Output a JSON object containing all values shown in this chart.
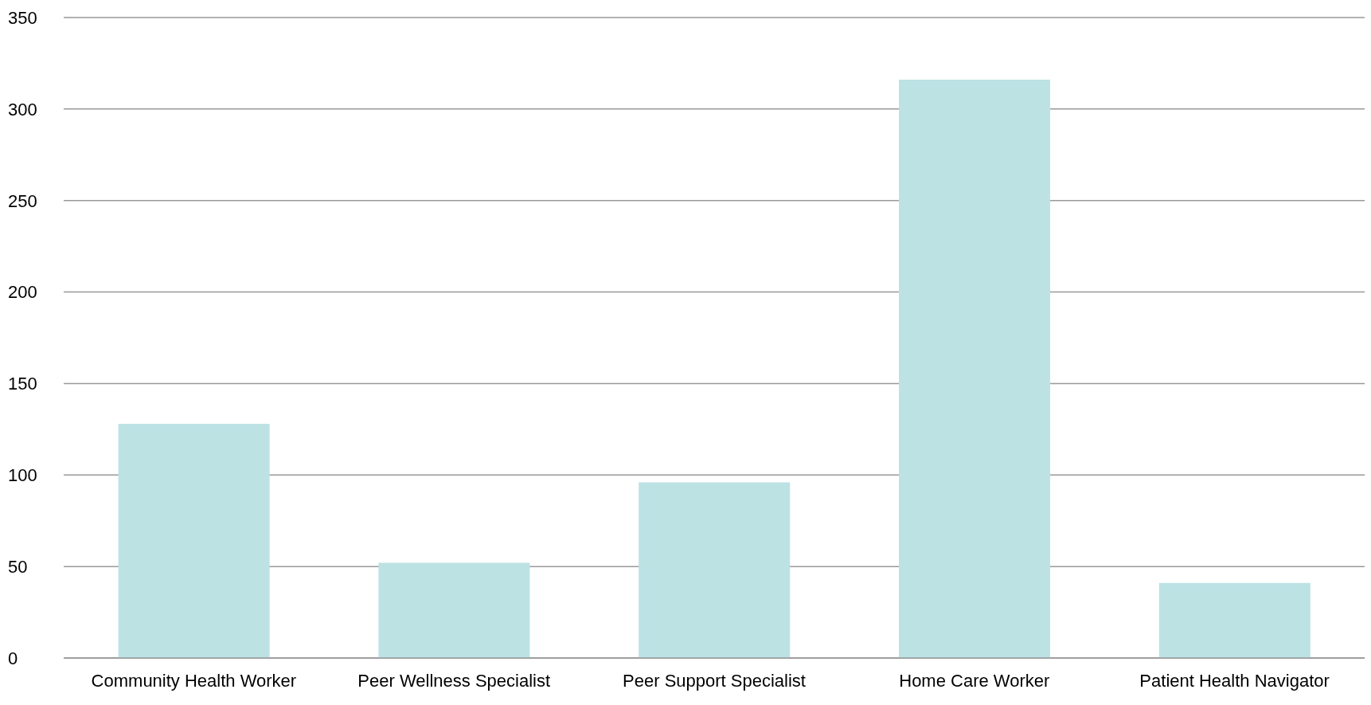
{
  "chart_data": {
    "type": "bar",
    "categories": [
      "Community Health Worker",
      "Peer Wellness Specialist",
      "Peer Support Specialist",
      "Home Care Worker",
      "Patient Health Navigator"
    ],
    "values": [
      128,
      52,
      96,
      316,
      41
    ],
    "color": "#bce2e4",
    "ylim": [
      0,
      350
    ],
    "yticks": [
      0,
      50,
      100,
      150,
      200,
      250,
      300,
      350
    ],
    "grid": "y"
  }
}
